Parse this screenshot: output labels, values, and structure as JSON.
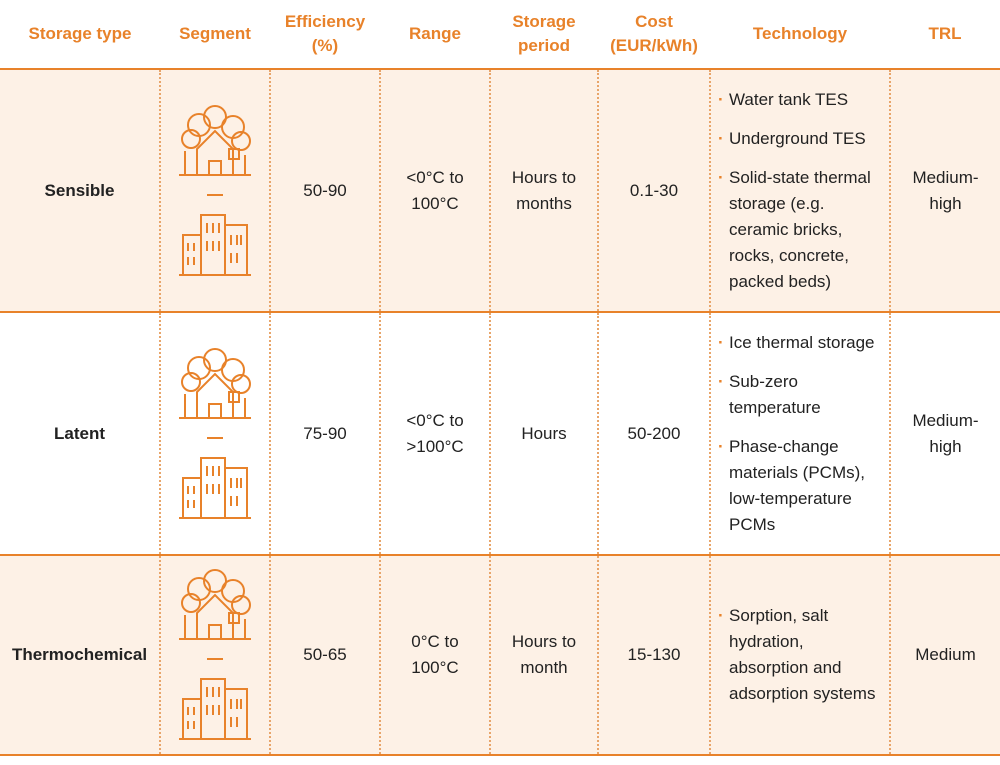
{
  "table": {
    "header": [
      "Storage type",
      "Segment",
      "Efficiency (%)",
      "Range",
      "Storage period",
      "Cost (EUR/kWh)",
      "Technology",
      "TRL"
    ],
    "rows": [
      {
        "storage_type": "Sensible",
        "efficiency": "50-90",
        "range": "<0°C to 100°C",
        "storage_period": "Hours to months",
        "cost": "0.1-30",
        "technology": [
          "Water tank TES",
          "Underground TES",
          "Solid-state thermal storage (e.g. ceramic bricks, rocks, concrete, packed beds)"
        ],
        "trl": "Medium-high"
      },
      {
        "storage_type": "Latent",
        "efficiency": "75-90",
        "range": "<0°C to >100°C",
        "storage_period": "Hours",
        "cost": "50-200",
        "technology": [
          "Ice thermal storage",
          "Sub-zero temperature",
          "Phase-change materials (PCMs), low-temperature PCMs"
        ],
        "trl": "Medium-high"
      },
      {
        "storage_type": "Thermochemical",
        "efficiency": "50-65",
        "range": "0°C to 100°C",
        "storage_period": "Hours to month",
        "cost": "15-130",
        "technology": [
          "Sorption, salt hydration, absorption and adsorption systems"
        ],
        "trl": "Medium"
      }
    ]
  }
}
